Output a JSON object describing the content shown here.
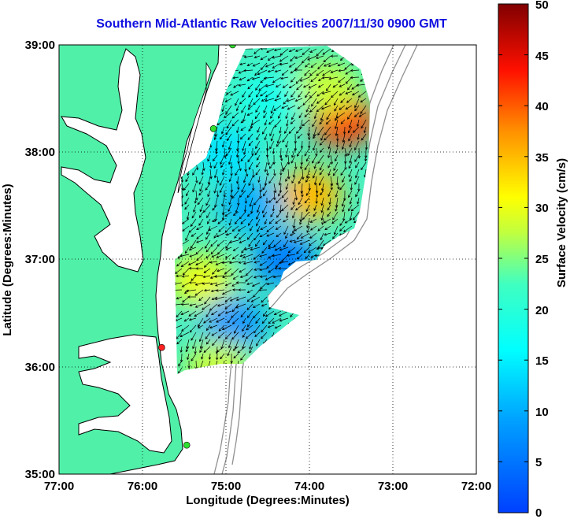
{
  "title": "Southern Mid-Atlantic Raw Velocities 2007/11/30 0900 GMT",
  "xlabel": "Longitude (Degrees:Minutes)",
  "ylabel": "Latitude (Degrees:Minutes)",
  "colorbar_label": "Surface Velocity (cm/s)",
  "x_ticks": [
    "77:00",
    "76:00",
    "75:00",
    "74:00",
    "73:00",
    "72:00"
  ],
  "y_ticks": [
    "39:00",
    "38:00",
    "37:00",
    "36:00",
    "35:00"
  ],
  "colorbar_ticks": [
    "0",
    "5",
    "10",
    "15",
    "20",
    "25",
    "30",
    "35",
    "40",
    "45",
    "50"
  ],
  "colors": {
    "land": "#50f0a8",
    "title": "#1010e0",
    "bathymetry": "#909090",
    "site_red": "#ff2020",
    "site_green": "#30e030"
  },
  "chart_data": {
    "type": "heatmap",
    "title": "Southern Mid-Atlantic Raw Velocities 2007/11/30 0900 GMT",
    "xlabel": "Longitude (Degrees:Minutes)",
    "ylabel": "Latitude (Degrees:Minutes)",
    "xlim": [
      -77.0,
      -72.0
    ],
    "ylim": [
      35.0,
      39.0
    ],
    "colorbar": {
      "label": "Surface Velocity (cm/s)",
      "range": [
        0,
        50
      ],
      "colormap": "jet"
    },
    "grid": true,
    "sites": [
      {
        "lon": -75.77,
        "lat": 36.18,
        "color": "red"
      },
      {
        "lon": -75.15,
        "lat": 38.22,
        "color": "green"
      },
      {
        "lon": -74.92,
        "lat": 39.0,
        "color": "green"
      },
      {
        "lon": -75.47,
        "lat": 35.27,
        "color": "green"
      }
    ],
    "velocity_zones": [
      {
        "lon": -73.6,
        "lat": 38.3,
        "speed": 42
      },
      {
        "lon": -73.8,
        "lat": 38.6,
        "speed": 28
      },
      {
        "lon": -74.0,
        "lat": 37.6,
        "speed": 35
      },
      {
        "lon": -74.7,
        "lat": 37.5,
        "speed": 10
      },
      {
        "lon": -74.3,
        "lat": 37.0,
        "speed": 6
      },
      {
        "lon": -75.3,
        "lat": 36.8,
        "speed": 30
      },
      {
        "lon": -74.9,
        "lat": 36.4,
        "speed": 8
      },
      {
        "lon": -75.1,
        "lat": 36.0,
        "speed": 28
      },
      {
        "lon": -74.5,
        "lat": 38.5,
        "speed": 18
      },
      {
        "lon": -75.0,
        "lat": 38.0,
        "speed": 14
      }
    ]
  }
}
